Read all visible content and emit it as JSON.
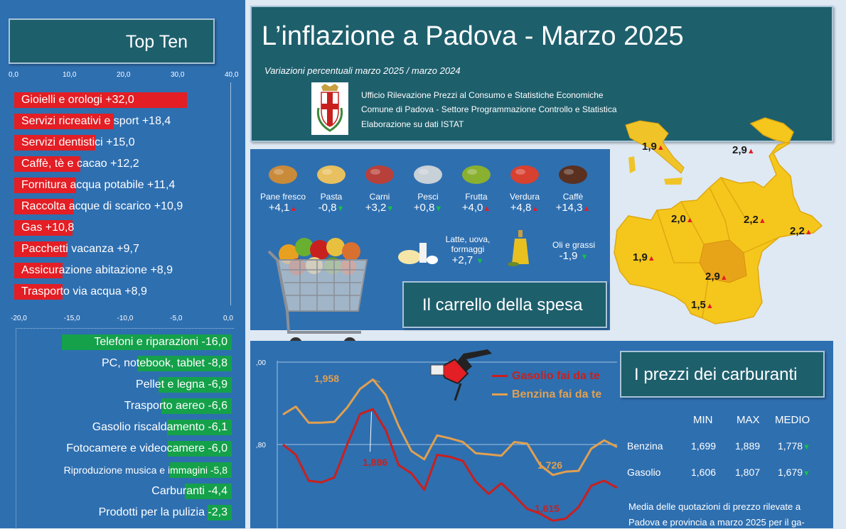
{
  "header": {
    "title": "L’inflazione a Padova - Marzo 2025",
    "subtitle": "Variazioni percentuali marzo 2025 / marzo 2024",
    "office_lines": [
      "Ufficio Rilevazione Prezzi al Consumo e Statistiche Economiche",
      "Comune di Padova -  Settore Programmazione Controllo e Statistica",
      "Elaborazione su dati ISTAT"
    ]
  },
  "top_ten": {
    "title": "Top Ten",
    "ticks_pos": [
      "0,0",
      "10,0",
      "20,0",
      "30,0",
      "40,0"
    ],
    "ticks_neg": [
      "-20,0",
      "-15,0",
      "-10,0",
      "-5,0",
      "0,0"
    ]
  },
  "cart": {
    "title": "Il carrello della spesa",
    "items": [
      {
        "name": "Pane fresco",
        "value": "+4,1",
        "dir": "up"
      },
      {
        "name": "Pasta",
        "value": "-0,8",
        "dir": "down"
      },
      {
        "name": "Carni",
        "value": "+3,2",
        "dir": "down"
      },
      {
        "name": "Pesci",
        "value": "+0,8",
        "dir": "down"
      },
      {
        "name": "Frutta",
        "value": "+4,0",
        "dir": "up"
      },
      {
        "name": "Verdura",
        "value": "+4,8",
        "dir": "up"
      },
      {
        "name": "Caffè",
        "value": "+14,3",
        "dir": "up"
      }
    ],
    "latte": {
      "name_line1": "Latte, uova,",
      "name_line2": "formaggi",
      "value": "+2,7",
      "dir": "down"
    },
    "oli": {
      "name": "Oli e grassi",
      "value": "-1,9",
      "dir": "down"
    }
  },
  "map": {
    "italy": "1,9",
    "veneto_n": "2,9",
    "vi": "2,0",
    "tv": "2,2",
    "ve": "2,2",
    "vr": "1,9",
    "pd": "2,9",
    "ro": "1,5"
  },
  "fuel": {
    "title": "I prezzi dei carburanti",
    "legend_gasolio": "Gasolio fai da te",
    "legend_benzina": "Benzina fai da te",
    "y_ticks": [
      ",00",
      ",80"
    ],
    "ann_benzina_max": "1,958",
    "ann_gasolio_max": "1,886",
    "ann_benzina_last": "1,726",
    "ann_gasolio_last": "1,615",
    "table": {
      "headers": [
        "MIN",
        "MAX",
        "MEDIO"
      ],
      "rows": [
        {
          "label": "Benzina",
          "min": "1,699",
          "max": "1,889",
          "avg": "1,778"
        },
        {
          "label": "Gasolio",
          "min": "1,606",
          "max": "1,807",
          "avg": "1,679"
        }
      ]
    },
    "note_line1": "Media delle quotazioni di prezzo rilevate a",
    "note_line2": "Padova e provincia a marzo 2025 per il ga-"
  },
  "colors": {
    "red": "#e31e24",
    "green": "#14a14a",
    "orange": "#e0a050",
    "darkred": "#c8201e",
    "panel": "#2e6fb0",
    "teal": "#1e5f6c"
  },
  "chart_data": [
    {
      "type": "bar",
      "title": "Top Ten",
      "categories": [
        "Gioielli e orologi",
        "Servizi ricreativi e sport",
        "Servizi dentistici",
        "Caffè, tè e cacao",
        "Fornitura acqua potabile",
        "Raccolta acque di scarico",
        "Gas",
        "Pacchetti vacanza",
        "Assicurazione abitazione",
        "Trasporto via acqua"
      ],
      "labels": [
        "Gioielli e orologi +32,0",
        "Servizi ricreativi e sport +18,4",
        "Servizi dentistici +15,0",
        "Caffè, tè e cacao +12,2",
        "Fornitura acqua potabile +11,4",
        "Raccolta acque di scarico +10,9",
        "Gas +10,8",
        "Pacchetti vacanza +9,7",
        "Assicurazione abitazione +8,9",
        "Trasporto via acqua +8,9"
      ],
      "values": [
        32.0,
        18.4,
        15.0,
        12.2,
        11.4,
        10.9,
        10.8,
        9.7,
        8.9,
        8.9
      ],
      "xlim": [
        0,
        40
      ]
    },
    {
      "type": "bar",
      "categories": [
        "Telefoni e riparazioni",
        "PC, notebook, tablet",
        "Pellet e legna",
        "Trasporto aereo",
        "Gasolio riscaldamento",
        "Fotocamere e videocamere",
        "Riproduzione musica e immagini",
        "Carburanti",
        "Prodotti per la pulizia"
      ],
      "labels": [
        "Telefoni e riparazioni -16,0",
        "PC, notebook, tablet -8,8",
        "Pellet e legna -6,9",
        "Trasporto aereo -6,6",
        "Gasolio riscaldamento -6,1",
        "Fotocamere e videocamere -6,0",
        "Riproduzione musica e immagini -5,8",
        "Carburanti -4,4",
        "Prodotti per la pulizia -2,3"
      ],
      "values": [
        -16.0,
        -8.8,
        -6.9,
        -6.6,
        -6.1,
        -6.0,
        -5.8,
        -4.4,
        -2.3
      ],
      "xlim": [
        -20,
        0
      ]
    },
    {
      "type": "line",
      "series": [
        {
          "name": "Benzina fai da te",
          "values": [
            1.873,
            1.892,
            1.853,
            1.853,
            1.855,
            1.89,
            1.935,
            1.958,
            1.92,
            1.845,
            1.784,
            1.764,
            1.822,
            1.815,
            1.806,
            1.779,
            1.776,
            1.773,
            1.806,
            1.802,
            1.751,
            1.726,
            1.734,
            1.736,
            1.79,
            1.81,
            1.794
          ]
        },
        {
          "name": "Gasolio fai da te",
          "values": [
            1.8,
            1.775,
            1.712,
            1.708,
            1.72,
            1.8,
            1.874,
            1.886,
            1.835,
            1.75,
            1.73,
            1.69,
            1.775,
            1.77,
            1.76,
            1.71,
            1.68,
            1.706,
            1.676,
            1.644,
            1.632,
            1.615,
            1.62,
            1.648,
            1.7,
            1.712,
            1.695
          ]
        }
      ],
      "ylim": [
        1.6,
        2.0
      ],
      "annotations": [
        "1,958",
        "1,886",
        "1,726",
        "1,615"
      ]
    }
  ]
}
